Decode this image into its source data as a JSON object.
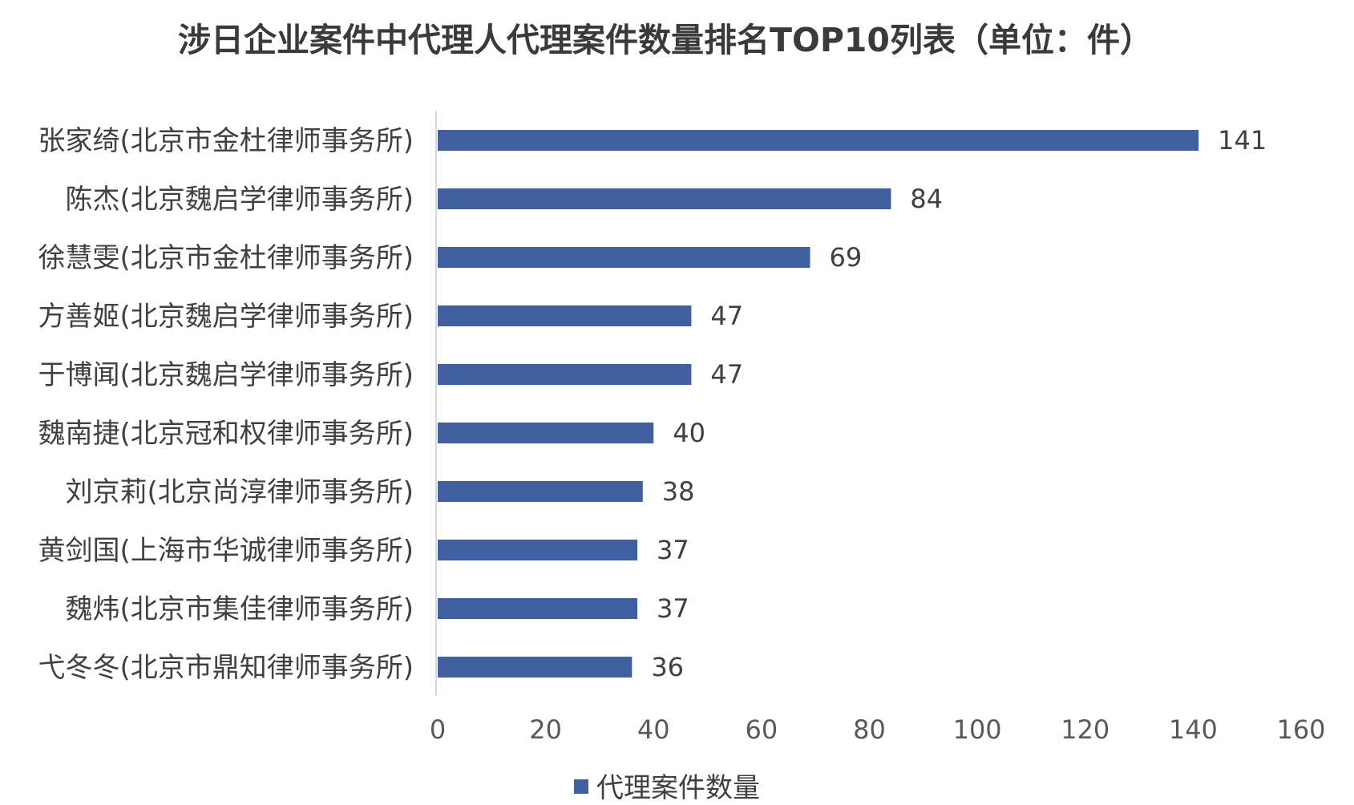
{
  "chart_data": {
    "type": "bar",
    "orientation": "horizontal",
    "title": "涉日企业案件中代理人代理案件数量排名TOP10列表（单位：件）",
    "categories": [
      "张家绮(北京市金杜律师事务所)",
      "陈杰(北京魏启学律师事务所)",
      "徐慧雯(北京市金杜律师事务所)",
      "方善姬(北京魏启学律师事务所)",
      "于博闻(北京魏启学律师事务所)",
      "魏南捷(北京冠和权律师事务所)",
      "刘京莉(北京尚淳律师事务所)",
      "黄剑国(上海市华诚律师事务所)",
      "魏炜(北京市集佳律师事务所)",
      "弋冬冬(北京市鼎知律师事务所)"
    ],
    "series": [
      {
        "name": "代理案件数量",
        "values": [
          141,
          84,
          69,
          47,
          47,
          40,
          38,
          37,
          37,
          36
        ]
      }
    ],
    "xlim": [
      0,
      160
    ],
    "xticks": [
      0,
      20,
      40,
      60,
      80,
      100,
      120,
      140,
      160
    ],
    "grid": false,
    "legend_position": "bottom",
    "bar_color": "#3F5F9E"
  }
}
